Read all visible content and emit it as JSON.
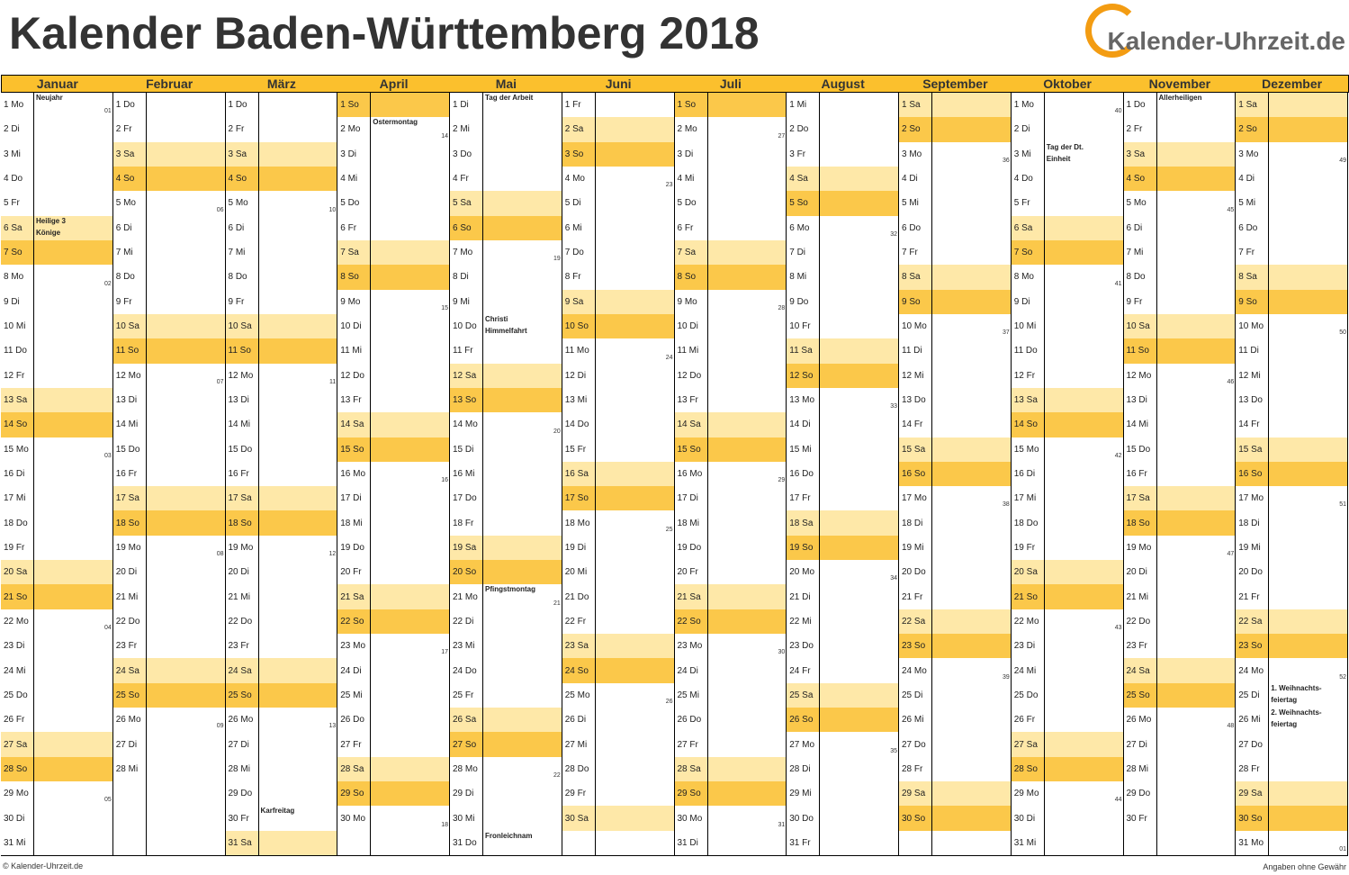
{
  "header": {
    "title": "Kalender Baden-Württemberg 2018",
    "logo": "Kalender-Uhrzeit.de"
  },
  "footer": {
    "left": "© Kalender-Uhrzeit.de",
    "right": "Angaben ohne Gewähr"
  },
  "weekend_colors": {
    "Sa": "#fee8a8",
    "So": "#fbc84a"
  },
  "week_number_day": "Mo",
  "months": [
    {
      "name": "Januar",
      "days": [
        "1 Mo",
        "2 Di",
        "3 Mi",
        "4 Do",
        "5 Fr",
        "6 Sa",
        "7 So",
        "8 Mo",
        "9 Di",
        "10 Mi",
        "11 Do",
        "12 Fr",
        "13 Sa",
        "14 So",
        "15 Mo",
        "16 Di",
        "17 Mi",
        "18 Do",
        "19 Fr",
        "20 Sa",
        "21 So",
        "22 Mo",
        "23 Di",
        "24 Mi",
        "25 Do",
        "26 Fr",
        "27 Sa",
        "28 So",
        "29 Mo",
        "30 Di",
        "31 Mi"
      ],
      "weeks": [
        "01",
        "02",
        "03",
        "04",
        "05"
      ],
      "holidays": [
        {
          "day": 1,
          "lines": [
            "Neujahr"
          ]
        },
        {
          "day": 6,
          "lines": [
            "Heilige 3",
            "Könige"
          ]
        }
      ]
    },
    {
      "name": "Februar",
      "days": [
        "1 Do",
        "2 Fr",
        "3 Sa",
        "4 So",
        "5 Mo",
        "6 Di",
        "7 Mi",
        "8 Do",
        "9 Fr",
        "10 Sa",
        "11 So",
        "12 Mo",
        "13 Di",
        "14 Mi",
        "15 Do",
        "16 Fr",
        "17 Sa",
        "18 So",
        "19 Mo",
        "20 Di",
        "21 Mi",
        "22 Do",
        "23 Fr",
        "24 Sa",
        "25 So",
        "26 Mo",
        "27 Di",
        "28 Mi"
      ],
      "weeks": [
        "06",
        "07",
        "08",
        "09"
      ],
      "holidays": []
    },
    {
      "name": "März",
      "days": [
        "1 Do",
        "2 Fr",
        "3 Sa",
        "4 So",
        "5 Mo",
        "6 Di",
        "7 Mi",
        "8 Do",
        "9 Fr",
        "10 Sa",
        "11 So",
        "12 Mo",
        "13 Di",
        "14 Mi",
        "15 Do",
        "16 Fr",
        "17 Sa",
        "18 So",
        "19 Mo",
        "20 Di",
        "21 Mi",
        "22 Do",
        "23 Fr",
        "24 Sa",
        "25 So",
        "26 Mo",
        "27 Di",
        "28 Mi",
        "29 Do",
        "30 Fr",
        "31 Sa"
      ],
      "weeks": [
        "10",
        "11",
        "12",
        "13"
      ],
      "holidays": [
        {
          "day": 30,
          "lines": [
            "Karfreitag"
          ]
        }
      ]
    },
    {
      "name": "April",
      "days": [
        "1 So",
        "2 Mo",
        "3 Di",
        "4 Mi",
        "5 Do",
        "6 Fr",
        "7 Sa",
        "8 So",
        "9 Mo",
        "10 Di",
        "11 Mi",
        "12 Do",
        "13 Fr",
        "14 Sa",
        "15 So",
        "16 Mo",
        "17 Di",
        "18 Mi",
        "19 Do",
        "20 Fr",
        "21 Sa",
        "22 So",
        "23 Mo",
        "24 Di",
        "25 Mi",
        "26 Do",
        "27 Fr",
        "28 Sa",
        "29 So",
        "30 Mo"
      ],
      "weeks": [
        "14",
        "15",
        "16",
        "17",
        "18"
      ],
      "holidays": [
        {
          "day": 2,
          "lines": [
            "Ostermontag"
          ]
        }
      ]
    },
    {
      "name": "Mai",
      "days": [
        "1 Di",
        "2 Mi",
        "3 Do",
        "4 Fr",
        "5 Sa",
        "6 So",
        "7 Mo",
        "8 Di",
        "9 Mi",
        "10 Do",
        "11 Fr",
        "12 Sa",
        "13 So",
        "14 Mo",
        "15 Di",
        "16 Mi",
        "17 Do",
        "18 Fr",
        "19 Sa",
        "20 So",
        "21 Mo",
        "22 Di",
        "23 Mi",
        "24 Do",
        "25 Fr",
        "26 Sa",
        "27 So",
        "28 Mo",
        "29 Di",
        "30 Mi",
        "31 Do"
      ],
      "weeks": [
        "19",
        "20",
        "21",
        "22"
      ],
      "holidays": [
        {
          "day": 1,
          "lines": [
            "Tag der Arbeit"
          ]
        },
        {
          "day": 10,
          "lines": [
            "Christi",
            "Himmelfahrt"
          ]
        },
        {
          "day": 21,
          "lines": [
            "Pfingstmontag"
          ]
        },
        {
          "day": 31,
          "lines": [
            "Fronleichnam"
          ]
        }
      ]
    },
    {
      "name": "Juni",
      "days": [
        "1 Fr",
        "2 Sa",
        "3 So",
        "4 Mo",
        "5 Di",
        "6 Mi",
        "7 Do",
        "8 Fr",
        "9 Sa",
        "10 So",
        "11 Mo",
        "12 Di",
        "13 Mi",
        "14 Do",
        "15 Fr",
        "16 Sa",
        "17 So",
        "18 Mo",
        "19 Di",
        "20 Mi",
        "21 Do",
        "22 Fr",
        "23 Sa",
        "24 So",
        "25 Mo",
        "26 Di",
        "27 Mi",
        "28 Do",
        "29 Fr",
        "30 Sa"
      ],
      "weeks": [
        "23",
        "24",
        "25",
        "26"
      ],
      "holidays": []
    },
    {
      "name": "Juli",
      "days": [
        "1 So",
        "2 Mo",
        "3 Di",
        "4 Mi",
        "5 Do",
        "6 Fr",
        "7 Sa",
        "8 So",
        "9 Mo",
        "10 Di",
        "11 Mi",
        "12 Do",
        "13 Fr",
        "14 Sa",
        "15 So",
        "16 Mo",
        "17 Di",
        "18 Mi",
        "19 Do",
        "20 Fr",
        "21 Sa",
        "22 So",
        "23 Mo",
        "24 Di",
        "25 Mi",
        "26 Do",
        "27 Fr",
        "28 Sa",
        "29 So",
        "30 Mo",
        "31 Di"
      ],
      "weeks": [
        "27",
        "28",
        "29",
        "30",
        "31"
      ],
      "holidays": []
    },
    {
      "name": "August",
      "days": [
        "1 Mi",
        "2 Do",
        "3 Fr",
        "4 Sa",
        "5 So",
        "6 Mo",
        "7 Di",
        "8 Mi",
        "9 Do",
        "10 Fr",
        "11 Sa",
        "12 So",
        "13 Mo",
        "14 Di",
        "15 Mi",
        "16 Do",
        "17 Fr",
        "18 Sa",
        "19 So",
        "20 Mo",
        "21 Di",
        "22 Mi",
        "23 Do",
        "24 Fr",
        "25 Sa",
        "26 So",
        "27 Mo",
        "28 Di",
        "29 Mi",
        "30 Do",
        "31 Fr"
      ],
      "weeks": [
        "32",
        "33",
        "34",
        "35"
      ],
      "holidays": []
    },
    {
      "name": "September",
      "days": [
        "1 Sa",
        "2 So",
        "3 Mo",
        "4 Di",
        "5 Mi",
        "6 Do",
        "7 Fr",
        "8 Sa",
        "9 So",
        "10 Mo",
        "11 Di",
        "12 Mi",
        "13 Do",
        "14 Fr",
        "15 Sa",
        "16 So",
        "17 Mo",
        "18 Di",
        "19 Mi",
        "20 Do",
        "21 Fr",
        "22 Sa",
        "23 So",
        "24 Mo",
        "25 Di",
        "26 Mi",
        "27 Do",
        "28 Fr",
        "29 Sa",
        "30 So"
      ],
      "weeks": [
        "36",
        "37",
        "38",
        "39"
      ],
      "holidays": []
    },
    {
      "name": "Oktober",
      "days": [
        "1 Mo",
        "2 Di",
        "3 Mi",
        "4 Do",
        "5 Fr",
        "6 Sa",
        "7 So",
        "8 Mo",
        "9 Di",
        "10 Mi",
        "11 Do",
        "12 Fr",
        "13 Sa",
        "14 So",
        "15 Mo",
        "16 Di",
        "17 Mi",
        "18 Do",
        "19 Fr",
        "20 Sa",
        "21 So",
        "22 Mo",
        "23 Di",
        "24 Mi",
        "25 Do",
        "26 Fr",
        "27 Sa",
        "28 So",
        "29 Mo",
        "30 Di",
        "31 Mi"
      ],
      "weeks": [
        "40",
        "41",
        "42",
        "43",
        "44"
      ],
      "holidays": [
        {
          "day": 3,
          "lines": [
            "Tag der Dt.",
            "Einheit"
          ]
        }
      ]
    },
    {
      "name": "November",
      "days": [
        "1 Do",
        "2 Fr",
        "3 Sa",
        "4 So",
        "5 Mo",
        "6 Di",
        "7 Mi",
        "8 Do",
        "9 Fr",
        "10 Sa",
        "11 So",
        "12 Mo",
        "13 Di",
        "14 Mi",
        "15 Do",
        "16 Fr",
        "17 Sa",
        "18 So",
        "19 Mo",
        "20 Di",
        "21 Mi",
        "22 Do",
        "23 Fr",
        "24 Sa",
        "25 So",
        "26 Mo",
        "27 Di",
        "28 Mi",
        "29 Do",
        "30 Fr"
      ],
      "weeks": [
        "45",
        "46",
        "47",
        "48"
      ],
      "holidays": [
        {
          "day": 1,
          "lines": [
            "Allerheiligen"
          ]
        }
      ]
    },
    {
      "name": "Dezember",
      "days": [
        "1 Sa",
        "2 So",
        "3 Mo",
        "4 Di",
        "5 Mi",
        "6 Do",
        "7 Fr",
        "8 Sa",
        "9 So",
        "10 Mo",
        "11 Di",
        "12 Mi",
        "13 Do",
        "14 Fr",
        "15 Sa",
        "16 So",
        "17 Mo",
        "18 Di",
        "19 Mi",
        "20 Do",
        "21 Fr",
        "22 Sa",
        "23 So",
        "24 Mo",
        "25 Di",
        "26 Mi",
        "27 Do",
        "28 Fr",
        "29 Sa",
        "30 So",
        "31 Mo"
      ],
      "weeks": [
        "49",
        "50",
        "51",
        "52",
        "01"
      ],
      "holidays": [
        {
          "day": 25,
          "lines": [
            "1. Weihnachts-",
            "feiertag"
          ]
        },
        {
          "day": 26,
          "lines": [
            "2. Weihnachts-",
            "feiertag"
          ]
        }
      ]
    }
  ]
}
